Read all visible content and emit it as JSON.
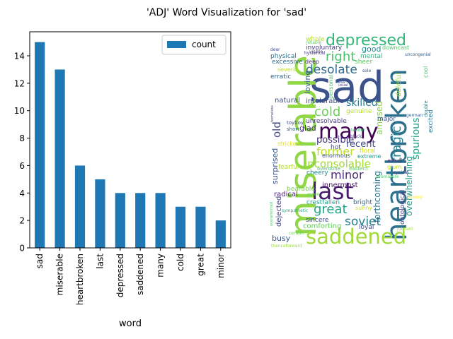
{
  "figure": {
    "title": "'ADJ' Word Visualization for 'sad'"
  },
  "chart_data": {
    "type": "bar",
    "categories": [
      "sad",
      "miserable",
      "heartbroken",
      "last",
      "depressed",
      "saddened",
      "many",
      "cold",
      "great",
      "minor"
    ],
    "series": [
      {
        "name": "count",
        "values": [
          15,
          13,
          6,
          5,
          4,
          4,
          4,
          3,
          3,
          2
        ]
      }
    ],
    "xlabel": "word",
    "ylabel": "",
    "ylim": [
      0,
      15.75
    ],
    "yticks": [
      0,
      2,
      4,
      6,
      8,
      10,
      12,
      14
    ],
    "bar_color": "#1f77b4",
    "legend_position": "top-right",
    "grid": false
  },
  "wordcloud": {
    "background": "#ffffff",
    "words": [
      {
        "text": "sad",
        "color": "#3b528b"
      },
      {
        "text": "miserable",
        "color": "#8fd744"
      },
      {
        "text": "heartbroken",
        "color": "#2d708e"
      },
      {
        "text": "saddened",
        "color": "#a0da39"
      },
      {
        "text": "depressed",
        "color": "#35b779"
      },
      {
        "text": "many",
        "color": "#440154"
      },
      {
        "text": "last",
        "color": "#481d6f"
      },
      {
        "text": "desolate",
        "color": "#31688e"
      },
      {
        "text": "right",
        "color": "#4ac16d"
      },
      {
        "text": "cold",
        "color": "#6ece58"
      },
      {
        "text": "great",
        "color": "#22a884"
      },
      {
        "text": "soviet",
        "color": "#277f8e"
      },
      {
        "text": "former",
        "color": "#bddf26"
      },
      {
        "text": "inconsolable",
        "color": "#a2da37"
      },
      {
        "text": "minor",
        "color": "#482878"
      },
      {
        "text": "tragic",
        "color": "#26828e"
      },
      {
        "text": "old",
        "color": "#414487"
      },
      {
        "text": "possible",
        "color": "#46337e"
      },
      {
        "text": "skilled",
        "color": "#2a788e"
      },
      {
        "text": "recent",
        "color": "#3e4a89"
      },
      {
        "text": "spurious",
        "color": "#20a386"
      },
      {
        "text": "overwhelming",
        "color": "#1f9e89"
      },
      {
        "text": "forthcoming",
        "color": "#2c728e"
      },
      {
        "text": "amused",
        "color": "#86d549"
      },
      {
        "text": "surprised",
        "color": "#38588c"
      },
      {
        "text": "busy",
        "color": "#3a548c"
      },
      {
        "text": "good",
        "color": "#25858e"
      },
      {
        "text": "whole",
        "color": "#b5de2b"
      },
      {
        "text": "involuntary",
        "color": "#443a83"
      },
      {
        "text": "physical",
        "color": "#2e6f8e"
      },
      {
        "text": "erratic",
        "color": "#34618d"
      },
      {
        "text": "excessive",
        "color": "#2f6b8e"
      },
      {
        "text": "mental",
        "color": "#31b57b"
      },
      {
        "text": "downcast",
        "color": "#54c568"
      },
      {
        "text": "sheer",
        "color": "#5ec962"
      },
      {
        "text": "deep",
        "color": "#472d7b"
      },
      {
        "text": "unresolvable",
        "color": "#453882"
      },
      {
        "text": "intolerable",
        "color": "#3c4f8a"
      },
      {
        "text": "natural",
        "color": "#3d4e8a"
      },
      {
        "text": "genuine",
        "color": "#b8de29"
      },
      {
        "text": "glad",
        "color": "#462f7c"
      },
      {
        "text": "loving",
        "color": "#355f8d"
      },
      {
        "text": "major",
        "color": "#3b518b"
      },
      {
        "text": "hot",
        "color": "#404588"
      },
      {
        "text": "floral",
        "color": "#d0e11c"
      },
      {
        "text": "extreme",
        "color": "#1e9b8a"
      },
      {
        "text": "innermost",
        "color": "#471063"
      },
      {
        "text": "cheery",
        "color": "#24868e"
      },
      {
        "text": "fearful",
        "color": "#b2dd2d"
      },
      {
        "text": "radical",
        "color": "#482173"
      },
      {
        "text": "bearable",
        "color": "#7ad151"
      },
      {
        "text": "crestfallen",
        "color": "#1fa188"
      },
      {
        "text": "bright",
        "color": "#32648e"
      },
      {
        "text": "comforting",
        "color": "#67cc5c"
      },
      {
        "text": "sincere",
        "color": "#3f4889"
      },
      {
        "text": "dejected",
        "color": "#433e85"
      },
      {
        "text": "loyal",
        "color": "#3e4c8a"
      },
      {
        "text": "ontological",
        "color": "#404688"
      },
      {
        "text": "doleful",
        "color": "#94d840"
      },
      {
        "text": "excited",
        "color": "#2b758e"
      },
      {
        "text": "sunny",
        "color": "#c8e020"
      },
      {
        "text": "enormous",
        "color": "#3a538b"
      },
      {
        "text": "stricken",
        "color": "#e2e418"
      },
      {
        "text": "personal",
        "color": "#56c667"
      },
      {
        "text": "toyboy",
        "color": "#3f4788"
      },
      {
        "text": "eastern",
        "color": "#5cc863"
      },
      {
        "text": "overdone",
        "color": "#40bd72"
      },
      {
        "text": "sympathetic",
        "color": "#2ab07f"
      },
      {
        "text": "uncongenial",
        "color": "#355e8d"
      },
      {
        "text": "several",
        "color": "#c2df23"
      },
      {
        "text": "short",
        "color": "#34608d"
      },
      {
        "text": "jubilant",
        "color": "#9dd93b"
      },
      {
        "text": "certain",
        "color": "#6ccd5a"
      },
      {
        "text": "thenceforward",
        "color": "#9bd93c"
      },
      {
        "text": "homeless",
        "color": "#3e4989"
      },
      {
        "text": "enough",
        "color": "#481467"
      },
      {
        "text": "glum",
        "color": "#cae11f"
      },
      {
        "text": "usual",
        "color": "#46327e"
      },
      {
        "text": "overwhelmed",
        "color": "#52c569"
      },
      {
        "text": "premature",
        "color": "#50c46a"
      },
      {
        "text": "hysterical",
        "color": "#472f7d"
      },
      {
        "text": "black",
        "color": "#3c4f8a"
      },
      {
        "text": "dear",
        "color": "#3d4d8a"
      },
      {
        "text": "double",
        "color": "#25838e"
      },
      {
        "text": "german",
        "color": "#365c8d"
      },
      {
        "text": "sole",
        "color": "#3c508b"
      },
      {
        "text": "cool",
        "color": "#4cc26c"
      },
      {
        "text": "less",
        "color": "#3b528b"
      },
      {
        "text": "green",
        "color": "#70cf57"
      },
      {
        "text": "reliable",
        "color": "#63cb5f"
      },
      {
        "text": "visible",
        "color": "#3f4889"
      },
      {
        "text": "gloomy",
        "color": "#fde725"
      },
      {
        "text": "tender",
        "color": "#3aba76"
      },
      {
        "text": "cynical",
        "color": "#433d84"
      }
    ]
  }
}
